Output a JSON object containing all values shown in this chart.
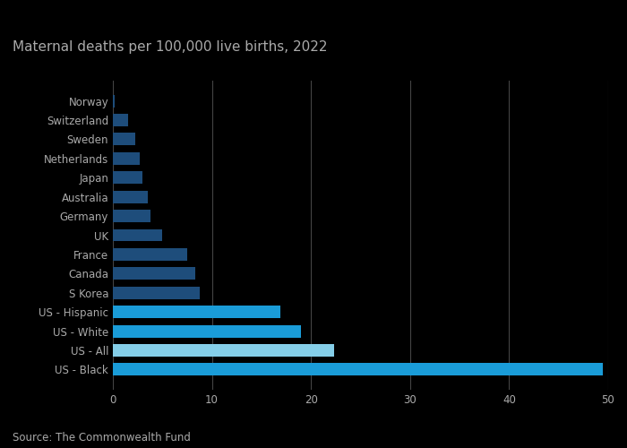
{
  "title": "Maternal deaths per 100,000 live births, 2022",
  "source": "Source: The Commonwealth Fund",
  "categories": [
    "US - Black",
    "US - All",
    "US - White",
    "US - Hispanic",
    "S Korea",
    "Canada",
    "France",
    "UK",
    "Germany",
    "Australia",
    "Japan",
    "Netherlands",
    "Sweden",
    "Switzerland",
    "Norway"
  ],
  "values": [
    49.5,
    22.3,
    19.0,
    16.9,
    8.8,
    8.3,
    7.5,
    5.0,
    3.8,
    3.5,
    3.0,
    2.7,
    2.3,
    1.5,
    0.2
  ],
  "colors": [
    "#1a9cd8",
    "#85cee8",
    "#1a9cd8",
    "#1a9cd8",
    "#1e4d7b",
    "#1e4d7b",
    "#1e4d7b",
    "#1e4d7b",
    "#1e4d7b",
    "#1e4d7b",
    "#1e4d7b",
    "#1e4d7b",
    "#1e4d7b",
    "#1e4d7b",
    "#1e4d7b"
  ],
  "xlim": [
    0,
    50
  ],
  "xticks": [
    0,
    10,
    20,
    30,
    40,
    50
  ],
  "background_color": "#000000",
  "grid_color": "#444444",
  "title_fontsize": 11,
  "label_fontsize": 8.5,
  "tick_fontsize": 8.5,
  "source_fontsize": 8.5,
  "title_color": "#aaaaaa",
  "label_color": "#aaaaaa",
  "tick_color": "#aaaaaa"
}
